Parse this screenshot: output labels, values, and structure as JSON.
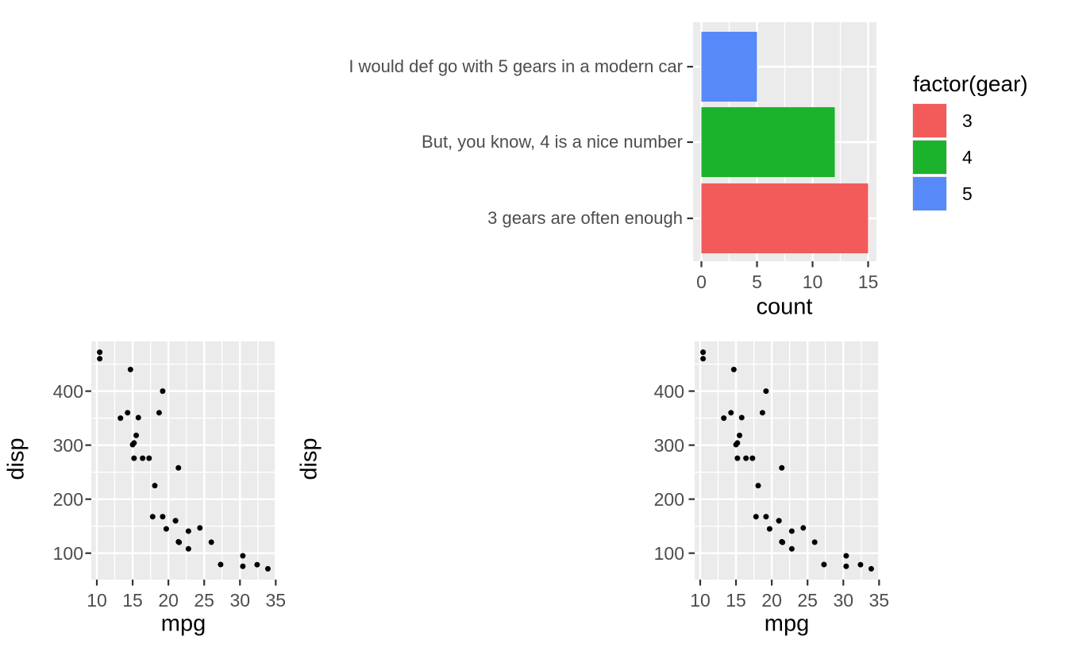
{
  "figure": {
    "background": "#FFFFFF",
    "panel_color": "#EBEBEB",
    "grid_color": "#FFFFFF",
    "tick_mark_color": "#333333",
    "tick_label_color": "#4D4D4D",
    "title_color": "#000000",
    "point_color": "#000000"
  },
  "chart_data": [
    {
      "type": "bar",
      "orientation": "horizontal",
      "xlabel": "count",
      "categories": [
        "I would def go with 5 gears in a modern car",
        "But, you know, 4 is a nice number",
        "3 gears are often enough"
      ],
      "values": [
        5,
        12,
        15
      ],
      "bar_colors": [
        "#5789F8",
        "#1CB32C",
        "#F25B5A"
      ],
      "xlim": [
        -0.75,
        15.75
      ],
      "x_ticks": [
        0,
        5,
        10,
        15
      ],
      "x_minor_ticks": [
        2.5,
        7.5,
        12.5
      ],
      "grid": true,
      "legend": {
        "title": "factor(gear)",
        "position": "right",
        "entries": [
          {
            "label": "3",
            "color": "#F25B5A"
          },
          {
            "label": "4",
            "color": "#1CB32C"
          },
          {
            "label": "5",
            "color": "#5789F8"
          }
        ]
      }
    },
    {
      "type": "scatter",
      "xlabel": "mpg",
      "ylabel": "disp",
      "xlim": [
        9.225,
        35.075
      ],
      "ylim": [
        51.06,
        492.05
      ],
      "x_ticks": [
        10,
        15,
        20,
        25,
        30,
        35
      ],
      "x_minor_ticks": [
        12.5,
        17.5,
        22.5,
        27.5,
        32.5
      ],
      "y_ticks": [
        100,
        200,
        300,
        400
      ],
      "y_minor_ticks": [
        150,
        250,
        350,
        450
      ],
      "grid": true,
      "points": [
        [
          21.0,
          160.0
        ],
        [
          21.0,
          160.0
        ],
        [
          22.8,
          108.0
        ],
        [
          21.4,
          258.0
        ],
        [
          18.7,
          360.0
        ],
        [
          18.1,
          225.0
        ],
        [
          14.3,
          360.0
        ],
        [
          24.4,
          146.7
        ],
        [
          22.8,
          140.8
        ],
        [
          19.2,
          167.6
        ],
        [
          17.8,
          167.6
        ],
        [
          16.4,
          275.8
        ],
        [
          17.3,
          275.8
        ],
        [
          15.2,
          275.8
        ],
        [
          10.4,
          472.0
        ],
        [
          10.4,
          460.0
        ],
        [
          14.7,
          440.0
        ],
        [
          32.4,
          78.7
        ],
        [
          30.4,
          75.7
        ],
        [
          33.9,
          71.1
        ],
        [
          21.5,
          120.1
        ],
        [
          15.5,
          318.0
        ],
        [
          15.2,
          304.0
        ],
        [
          13.3,
          350.0
        ],
        [
          19.2,
          400.0
        ],
        [
          27.3,
          79.0
        ],
        [
          26.0,
          120.3
        ],
        [
          30.4,
          95.1
        ],
        [
          15.8,
          351.0
        ],
        [
          19.7,
          145.0
        ],
        [
          15.0,
          301.0
        ],
        [
          21.4,
          121.0
        ]
      ]
    },
    {
      "type": "scatter",
      "xlabel": "mpg",
      "ylabel": "disp",
      "xlim": [
        9.225,
        35.075
      ],
      "ylim": [
        51.06,
        492.05
      ],
      "x_ticks": [
        10,
        15,
        20,
        25,
        30,
        35
      ],
      "x_minor_ticks": [
        12.5,
        17.5,
        22.5,
        27.5,
        32.5
      ],
      "y_ticks": [
        100,
        200,
        300,
        400
      ],
      "y_minor_ticks": [
        150,
        250,
        350,
        450
      ],
      "grid": true,
      "points": [
        [
          21.0,
          160.0
        ],
        [
          21.0,
          160.0
        ],
        [
          22.8,
          108.0
        ],
        [
          21.4,
          258.0
        ],
        [
          18.7,
          360.0
        ],
        [
          18.1,
          225.0
        ],
        [
          14.3,
          360.0
        ],
        [
          24.4,
          146.7
        ],
        [
          22.8,
          140.8
        ],
        [
          19.2,
          167.6
        ],
        [
          17.8,
          167.6
        ],
        [
          16.4,
          275.8
        ],
        [
          17.3,
          275.8
        ],
        [
          15.2,
          275.8
        ],
        [
          10.4,
          472.0
        ],
        [
          10.4,
          460.0
        ],
        [
          14.7,
          440.0
        ],
        [
          32.4,
          78.7
        ],
        [
          30.4,
          75.7
        ],
        [
          33.9,
          71.1
        ],
        [
          21.5,
          120.1
        ],
        [
          15.5,
          318.0
        ],
        [
          15.2,
          304.0
        ],
        [
          13.3,
          350.0
        ],
        [
          19.2,
          400.0
        ],
        [
          27.3,
          79.0
        ],
        [
          26.0,
          120.3
        ],
        [
          30.4,
          95.1
        ],
        [
          15.8,
          351.0
        ],
        [
          19.7,
          145.0
        ],
        [
          15.0,
          301.0
        ],
        [
          21.4,
          121.0
        ]
      ]
    }
  ]
}
